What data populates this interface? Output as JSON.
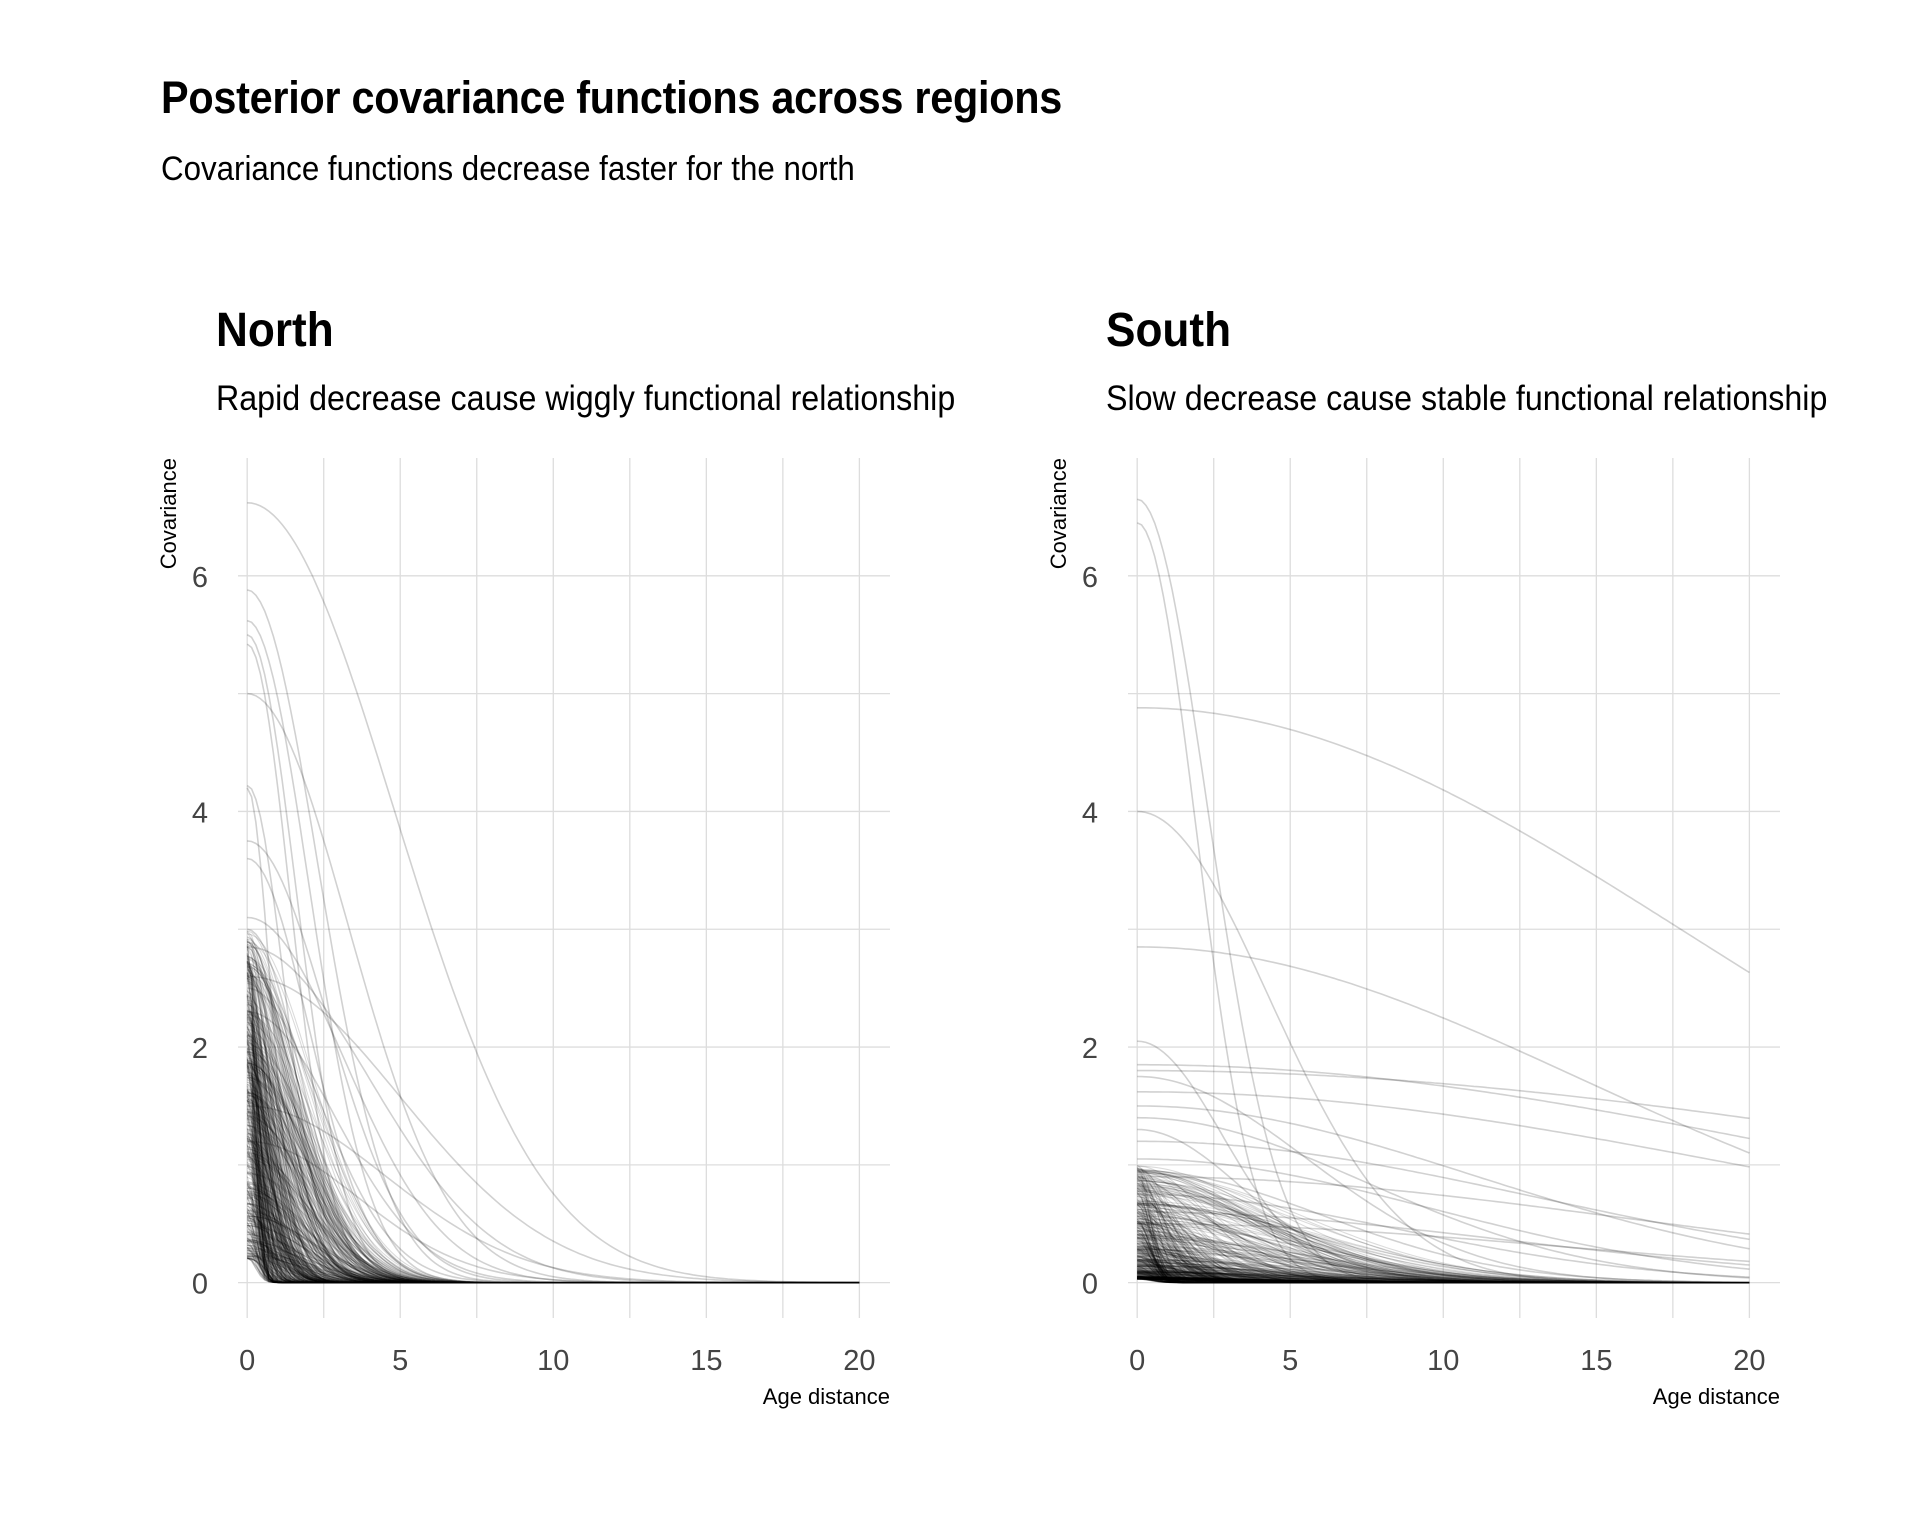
{
  "title": "Posterior covariance functions across regions",
  "subtitle": "Covariance functions decrease faster for the north",
  "chart_data": [
    {
      "type": "line",
      "panel": "North",
      "title": "North",
      "subtitle": "Rapid decrease cause wiggly functional relationship",
      "xlabel": "Age distance",
      "ylabel": "Covariance",
      "xlim": [
        -0.3,
        21
      ],
      "ylim": [
        -0.3,
        7
      ],
      "xticks": [
        0,
        5,
        10,
        15,
        20
      ],
      "yticks": [
        0,
        2,
        4,
        6
      ],
      "x_tick_labels": [
        "0",
        "5",
        "10",
        "15",
        "20"
      ],
      "y_tick_labels": [
        "0",
        "2",
        "4",
        "6"
      ],
      "grid": true,
      "line_color": "#000000",
      "line_opacity": 0.18,
      "curve_form": "sq_exp: eta2 * exp(-x^2 / (2 * rho^2))",
      "series": [
        {
          "eta2": 6.62,
          "rho": 4.8
        },
        {
          "eta2": 5.88,
          "rho": 2.3
        },
        {
          "eta2": 5.62,
          "rho": 2.0
        },
        {
          "eta2": 5.5,
          "rho": 1.6
        },
        {
          "eta2": 5.42,
          "rho": 1.4
        },
        {
          "eta2": 5.0,
          "rho": 3.3
        },
        {
          "eta2": 4.22,
          "rho": 1.2
        },
        {
          "eta2": 4.2,
          "rho": 0.75
        },
        {
          "eta2": 3.75,
          "rho": 2.6
        },
        {
          "eta2": 3.6,
          "rho": 2.0
        },
        {
          "eta2": 3.1,
          "rho": 3.2
        },
        {
          "eta2": 3.0,
          "rho": 1.7
        },
        {
          "eta2": 2.85,
          "rho": 4.0
        },
        {
          "eta2": 2.75,
          "rho": 1.5
        },
        {
          "eta2": 2.6,
          "rho": 5.0
        },
        {
          "eta2": 2.5,
          "rho": 2.4
        },
        {
          "eta2": 2.3,
          "rho": 2.9
        },
        {
          "eta2": 2.1,
          "rho": 1.2
        },
        {
          "eta2": 1.5,
          "rho": 4.5
        },
        {
          "eta2": 1.2,
          "rho": 3.6
        }
      ],
      "series_note": "Plus several hundred additional posterior draws with eta2 in 0.2–3.0 and rho in 0.25–2.2, concentrated near x = 0–3."
    },
    {
      "type": "line",
      "panel": "South",
      "title": "South",
      "subtitle": "Slow decrease cause stable functional relationship",
      "xlabel": "Age distance",
      "ylabel": "Covariance",
      "xlim": [
        -0.3,
        21
      ],
      "ylim": [
        -0.3,
        7
      ],
      "xticks": [
        0,
        5,
        10,
        15,
        20
      ],
      "yticks": [
        0,
        2,
        4,
        6
      ],
      "x_tick_labels": [
        "0",
        "5",
        "10",
        "15",
        "20"
      ],
      "y_tick_labels": [
        "0",
        "2",
        "4",
        "6"
      ],
      "grid": true,
      "line_color": "#000000",
      "line_opacity": 0.18,
      "curve_form": "sq_exp: eta2 * exp(-x^2 / (2 * rho^2))",
      "series": [
        {
          "eta2": 6.65,
          "rho": 2.3
        },
        {
          "eta2": 6.45,
          "rho": 1.9
        },
        {
          "eta2": 4.88,
          "rho": 18.0
        },
        {
          "eta2": 4.0,
          "rho": 4.3
        },
        {
          "eta2": 2.85,
          "rho": 14.5
        },
        {
          "eta2": 2.05,
          "rho": 2.8
        },
        {
          "eta2": 1.85,
          "rho": 22.0
        },
        {
          "eta2": 1.8,
          "rho": 28.0
        },
        {
          "eta2": 1.75,
          "rho": 5.5
        },
        {
          "eta2": 1.62,
          "rho": 20.0
        },
        {
          "eta2": 1.5,
          "rho": 11.0
        },
        {
          "eta2": 1.4,
          "rho": 7.5
        },
        {
          "eta2": 1.3,
          "rho": 3.5
        },
        {
          "eta2": 1.2,
          "rho": 13.0
        },
        {
          "eta2": 1.05,
          "rho": 9.5
        },
        {
          "eta2": 0.95,
          "rho": 6.0
        },
        {
          "eta2": 0.9,
          "rho": 16.0
        },
        {
          "eta2": 0.75,
          "rho": 8.5
        },
        {
          "eta2": 0.6,
          "rho": 12.0
        },
        {
          "eta2": 0.5,
          "rho": 14.0
        }
      ],
      "series_note": "Plus several hundred additional posterior draws with eta2 in 0.03–1.0 and rho in 0.4–6, concentrated near the x axis."
    }
  ]
}
